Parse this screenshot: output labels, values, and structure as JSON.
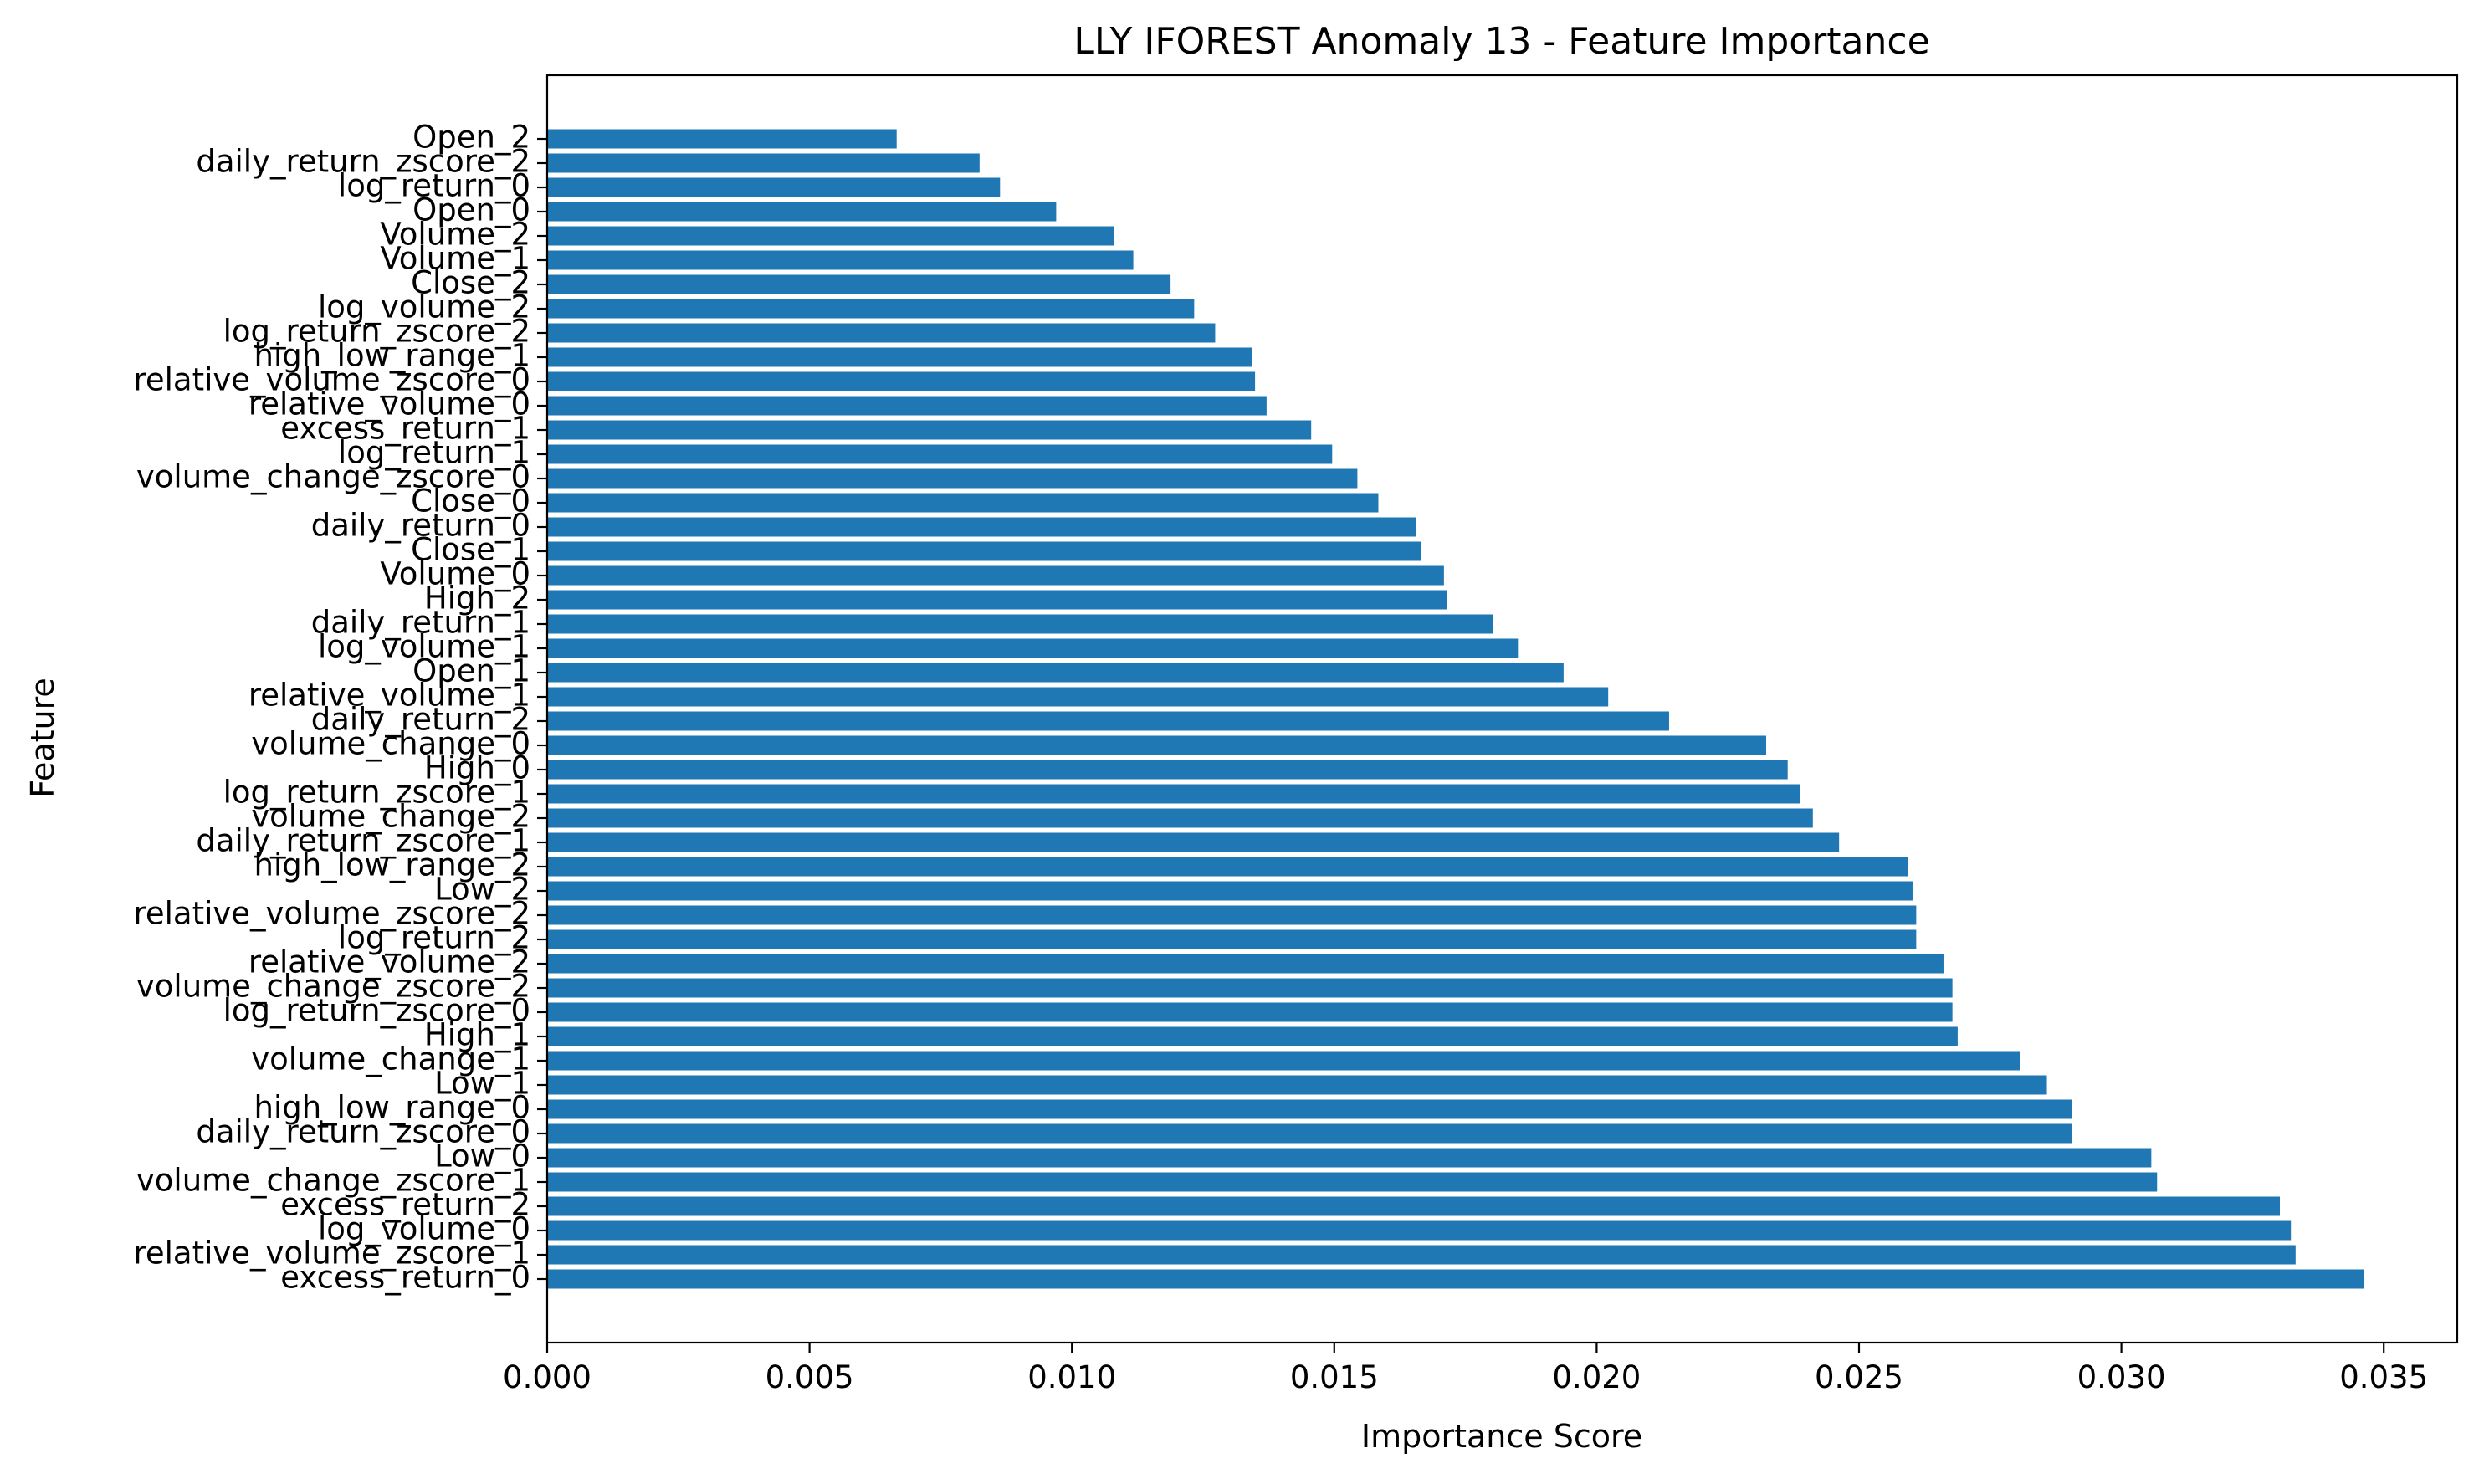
{
  "chart_data": {
    "type": "bar",
    "orientation": "horizontal",
    "title": "LLY IFOREST Anomaly 13 - Feature Importance",
    "xlabel": "Importance Score",
    "ylabel": "Feature",
    "xlim": [
      0,
      0.0364
    ],
    "x_ticks": [
      "0.000",
      "0.005",
      "0.010",
      "0.015",
      "0.020",
      "0.025",
      "0.030",
      "0.035"
    ],
    "x_tick_values": [
      0.0,
      0.005,
      0.01,
      0.015,
      0.02,
      0.025,
      0.03,
      0.035
    ],
    "grid": false,
    "bar_color": "#1f77b4",
    "categories": [
      "excess_return_0",
      "relative_volume_zscore_1",
      "log_volume_0",
      "excess_return_2",
      "volume_change_zscore_1",
      "Low_0",
      "daily_return_zscore_0",
      "high_low_range_0",
      "Low_1",
      "volume_change_1",
      "High_1",
      "log_return_zscore_0",
      "volume_change_zscore_2",
      "relative_volume_2",
      "log_return_2",
      "relative_volume_zscore_2",
      "Low_2",
      "high_low_range_2",
      "daily_return_zscore_1",
      "volume_change_2",
      "log_return_zscore_1",
      "High_0",
      "volume_change_0",
      "daily_return_2",
      "relative_volume_1",
      "Open_1",
      "log_volume_1",
      "daily_return_1",
      "High_2",
      "Volume_0",
      "Close_1",
      "daily_return_0",
      "Close_0",
      "volume_change_zscore_0",
      "log_return_1",
      "excess_return_1",
      "relative_volume_0",
      "relative_volume_zscore_0",
      "high_low_range_1",
      "log_return_zscore_2",
      "log_volume_2",
      "Close_2",
      "Volume_1",
      "Volume_2",
      "Open_0",
      "log_return_0",
      "daily_return_zscore_2",
      "Open_2"
    ],
    "values": [
      0.03462,
      0.03332,
      0.03323,
      0.03302,
      0.03068,
      0.03057,
      0.02906,
      0.02905,
      0.02858,
      0.02807,
      0.02688,
      0.02678,
      0.02678,
      0.02661,
      0.02609,
      0.02609,
      0.02602,
      0.02594,
      0.02462,
      0.02412,
      0.02387,
      0.02364,
      0.02323,
      0.02138,
      0.02022,
      0.01937,
      0.0185,
      0.01803,
      0.01714,
      0.01709,
      0.01665,
      0.01655,
      0.01584,
      0.01544,
      0.01496,
      0.01456,
      0.01371,
      0.01349,
      0.01344,
      0.01273,
      0.01233,
      0.01188,
      0.01117,
      0.01081,
      0.0097,
      0.00863,
      0.00824,
      0.00666
    ]
  }
}
